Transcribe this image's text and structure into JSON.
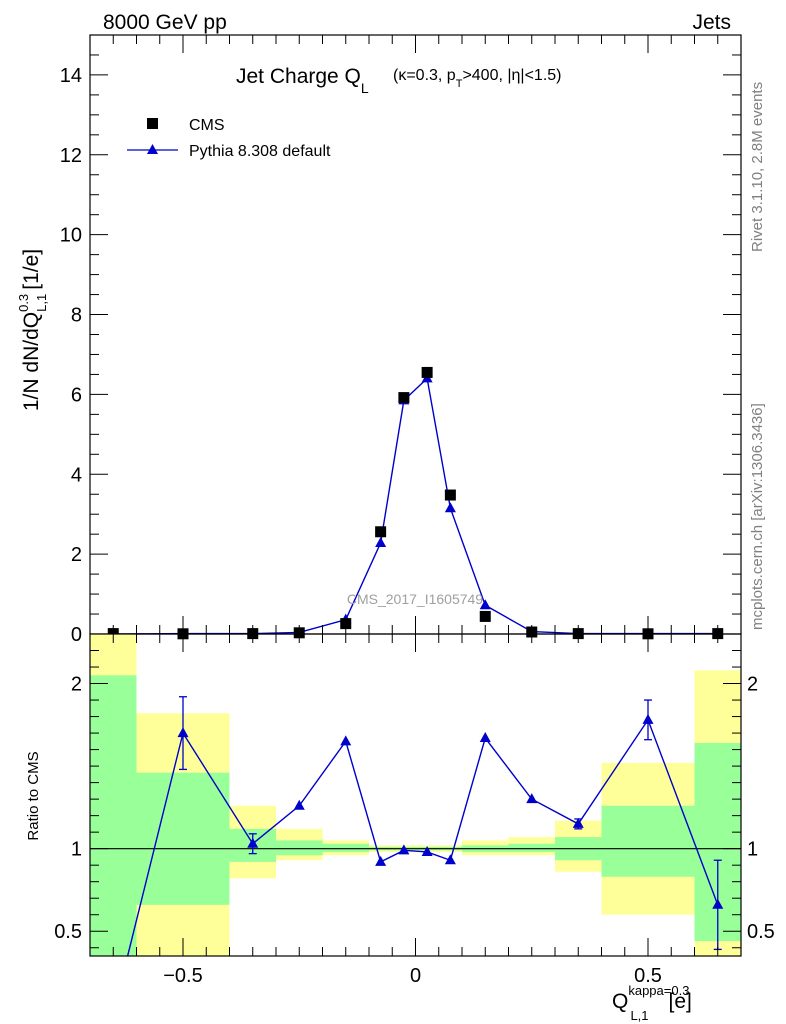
{
  "header": {
    "left": "8000 GeV pp",
    "right": "Jets"
  },
  "title": {
    "main": "Jet Charge Q",
    "main_sub": "L",
    "cond_kappa": "(κ=0.3, p",
    "cond_sub": "T",
    "cond_rest": ">400, |η|<1.5)"
  },
  "side_labels": {
    "rivet": "Rivet 3.1.10,  2.8M events",
    "mcplots": "mcplots.cern.ch [arXiv:1306.3436]"
  },
  "watermark": "CMS_2017_I1605749",
  "legend": {
    "cms": "CMS",
    "pythia": "Pythia 8.308 default"
  },
  "colors": {
    "data": "#000000",
    "mc": "#0000cc",
    "band_inner": "#99ff99",
    "band_outer": "#ffff99"
  },
  "axes": {
    "y_main_label": "1/N dN/dQ",
    "y_main_sup": "0.3",
    "y_main_sub": "L,1",
    "y_main_unit": "[1/e]",
    "y_ratio_label": "Ratio to CMS",
    "x_label": "Q",
    "x_sup": "kappa=0.3",
    "x_sub": "L,1",
    "x_unit": "[e]"
  },
  "chart_data": {
    "type": "scatter",
    "xlim": [
      -0.7,
      0.7
    ],
    "ylim_main": [
      0,
      15
    ],
    "ylim_ratio": [
      0.35,
      2.3
    ],
    "x_ticks": [
      -0.5,
      0,
      0.5
    ],
    "x_tick_labels": [
      "−0.5",
      "0",
      "0.5"
    ],
    "y_main_ticks": [
      0,
      2,
      4,
      6,
      8,
      10,
      12,
      14
    ],
    "y_main_tick_labels": [
      "0",
      "2",
      "4",
      "6",
      "8",
      "10",
      "12",
      "14"
    ],
    "y_ratio_ticks": [
      0.5,
      1,
      2
    ],
    "y_ratio_tick_labels": [
      "0.5",
      "1",
      "2"
    ],
    "bins": [
      {
        "lo": -0.7,
        "hi": -0.6,
        "x": -0.65,
        "cms": 0.01,
        "pythia": 0.0,
        "ratio": 0.0,
        "ratio_err": 0.0,
        "in_lo": 0.0,
        "in_hi": 2.05,
        "out_lo": 0.0,
        "out_hi": 2.35
      },
      {
        "lo": -0.6,
        "hi": -0.4,
        "x": -0.5,
        "cms": 0.005,
        "pythia": 0.01,
        "ratio": 1.7,
        "ratio_err": 0.22,
        "in_lo": 0.66,
        "in_hi": 1.46,
        "out_lo": 0.0,
        "out_hi": 1.82
      },
      {
        "lo": -0.4,
        "hi": -0.3,
        "x": -0.35,
        "cms": 0.01,
        "pythia": 0.01,
        "ratio": 1.03,
        "ratio_err": 0.06,
        "in_lo": 0.92,
        "in_hi": 1.12,
        "out_lo": 0.82,
        "out_hi": 1.26
      },
      {
        "lo": -0.3,
        "hi": -0.2,
        "x": -0.25,
        "cms": 0.03,
        "pythia": 0.04,
        "ratio": 1.26,
        "ratio_err": 0.0,
        "in_lo": 0.96,
        "in_hi": 1.05,
        "out_lo": 0.93,
        "out_hi": 1.12
      },
      {
        "lo": -0.2,
        "hi": -0.1,
        "x": -0.15,
        "cms": 0.26,
        "pythia": 0.36,
        "ratio": 1.65,
        "ratio_err": 0.0,
        "in_lo": 0.98,
        "in_hi": 1.03,
        "out_lo": 0.96,
        "out_hi": 1.05
      },
      {
        "lo": -0.1,
        "hi": -0.05,
        "x": -0.075,
        "cms": 2.56,
        "pythia": 2.28,
        "ratio": 0.92,
        "ratio_err": 0.0,
        "in_lo": 0.99,
        "in_hi": 1.01,
        "out_lo": 0.98,
        "out_hi": 1.02
      },
      {
        "lo": -0.05,
        "hi": 0.0,
        "x": -0.025,
        "cms": 5.92,
        "pythia": 5.85,
        "ratio": 0.99,
        "ratio_err": 0.0,
        "in_lo": 0.99,
        "in_hi": 1.01,
        "out_lo": 0.98,
        "out_hi": 1.02
      },
      {
        "lo": 0.0,
        "hi": 0.05,
        "x": 0.025,
        "cms": 6.55,
        "pythia": 6.4,
        "ratio": 0.98,
        "ratio_err": 0.0,
        "in_lo": 0.99,
        "in_hi": 1.01,
        "out_lo": 0.98,
        "out_hi": 1.02
      },
      {
        "lo": 0.05,
        "hi": 0.1,
        "x": 0.075,
        "cms": 3.48,
        "pythia": 3.15,
        "ratio": 0.93,
        "ratio_err": 0.0,
        "in_lo": 0.99,
        "in_hi": 1.01,
        "out_lo": 0.98,
        "out_hi": 1.02
      },
      {
        "lo": 0.1,
        "hi": 0.2,
        "x": 0.15,
        "cms": 0.44,
        "pythia": 0.72,
        "ratio": 1.67,
        "ratio_err": 0.0,
        "in_lo": 0.98,
        "in_hi": 1.02,
        "out_lo": 0.96,
        "out_hi": 1.05
      },
      {
        "lo": 0.2,
        "hi": 0.3,
        "x": 0.25,
        "cms": 0.05,
        "pythia": 0.06,
        "ratio": 1.3,
        "ratio_err": 0.0,
        "in_lo": 0.98,
        "in_hi": 1.03,
        "out_lo": 0.96,
        "out_hi": 1.07
      },
      {
        "lo": 0.3,
        "hi": 0.4,
        "x": 0.35,
        "cms": 0.01,
        "pythia": 0.01,
        "ratio": 1.15,
        "ratio_err": 0.03,
        "in_lo": 0.93,
        "in_hi": 1.07,
        "out_lo": 0.86,
        "out_hi": 1.17
      },
      {
        "lo": 0.4,
        "hi": 0.6,
        "x": 0.5,
        "cms": 0.005,
        "pythia": 0.01,
        "ratio": 1.78,
        "ratio_err": 0.12,
        "in_lo": 0.83,
        "in_hi": 1.26,
        "out_lo": 0.6,
        "out_hi": 1.52
      },
      {
        "lo": 0.6,
        "hi": 0.7,
        "x": 0.65,
        "cms": 0.01,
        "pythia": 0.01,
        "ratio": 0.66,
        "ratio_err": 0.27,
        "in_lo": 0.44,
        "in_hi": 1.64,
        "out_lo": 0.0,
        "out_hi": 2.08
      }
    ]
  }
}
